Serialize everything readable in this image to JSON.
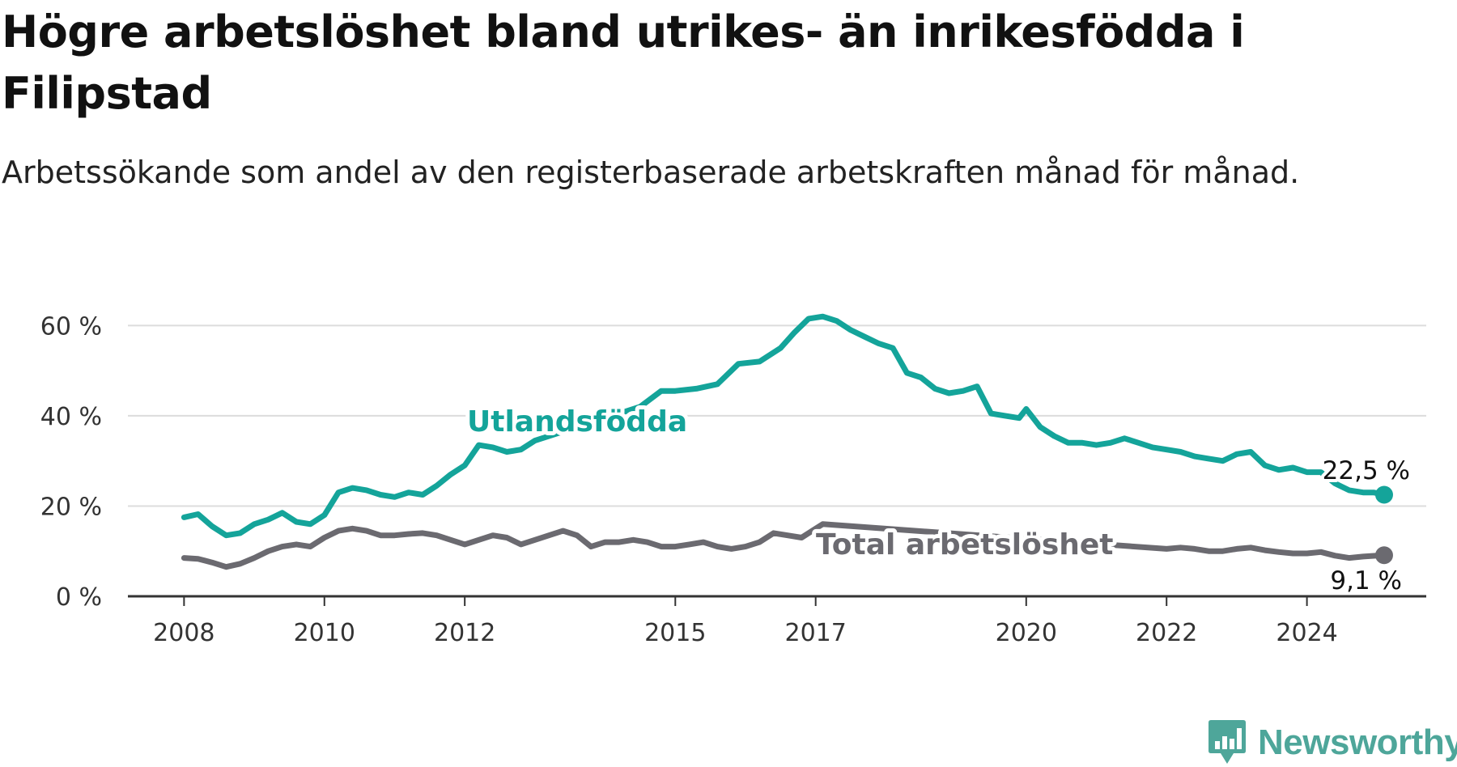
{
  "title": "Högre arbetslöshet bland utrikes- än inrikesfödda i Filipstad",
  "subtitle": "Arbetssökande som andel av den registerbaserade arbetskraften månad för månad.",
  "brand": {
    "name": "Newsworthy",
    "icon": "bar-chart-logo-icon"
  },
  "colors": {
    "foreign_born": "#14a49a",
    "total": "#6b6a70",
    "grid": "#dcdcdc",
    "axis": "#333333"
  },
  "chart_data": {
    "type": "line",
    "x_axis": {
      "ticks": [
        "2008",
        "2010",
        "2012",
        "2015",
        "2017",
        "2020",
        "2022",
        "2024"
      ],
      "range": [
        2007.2,
        2025.7
      ]
    },
    "y_axis": {
      "ticks": [
        "0 %",
        "20 %",
        "40 %",
        "60 %"
      ],
      "tick_values": [
        0,
        20,
        40,
        60
      ],
      "range": [
        0,
        64
      ]
    },
    "grid": true,
    "series": [
      {
        "name": "Utlandsfödda",
        "end_label": "22,5 %",
        "end_value": 22.5,
        "points": [
          [
            2008.0,
            17.5
          ],
          [
            2008.2,
            18.2
          ],
          [
            2008.4,
            15.5
          ],
          [
            2008.6,
            13.5
          ],
          [
            2008.8,
            14.0
          ],
          [
            2009.0,
            16.0
          ],
          [
            2009.2,
            17.0
          ],
          [
            2009.4,
            18.5
          ],
          [
            2009.6,
            16.5
          ],
          [
            2009.8,
            16.0
          ],
          [
            2010.0,
            18.0
          ],
          [
            2010.2,
            23.0
          ],
          [
            2010.4,
            24.0
          ],
          [
            2010.6,
            23.5
          ],
          [
            2010.8,
            22.5
          ],
          [
            2011.0,
            22.0
          ],
          [
            2011.2,
            23.0
          ],
          [
            2011.4,
            22.5
          ],
          [
            2011.6,
            24.5
          ],
          [
            2011.8,
            27.0
          ],
          [
            2012.0,
            29.0
          ],
          [
            2012.2,
            33.5
          ],
          [
            2012.4,
            33.0
          ],
          [
            2012.6,
            32.0
          ],
          [
            2012.8,
            32.5
          ],
          [
            2013.0,
            34.5
          ],
          [
            2014.5,
            42.0
          ],
          [
            2014.8,
            45.5
          ],
          [
            2015.0,
            45.5
          ],
          [
            2015.3,
            46.0
          ],
          [
            2015.6,
            47.0
          ],
          [
            2015.9,
            51.5
          ],
          [
            2016.2,
            52.0
          ],
          [
            2016.5,
            55.0
          ],
          [
            2016.7,
            58.5
          ],
          [
            2016.9,
            61.5
          ],
          [
            2017.1,
            62.0
          ],
          [
            2017.3,
            61.0
          ],
          [
            2017.5,
            59.0
          ],
          [
            2017.7,
            57.5
          ],
          [
            2017.9,
            56.0
          ],
          [
            2018.1,
            55.0
          ],
          [
            2018.3,
            49.5
          ],
          [
            2018.5,
            48.5
          ],
          [
            2018.7,
            46.0
          ],
          [
            2018.9,
            45.0
          ],
          [
            2019.1,
            45.5
          ],
          [
            2019.3,
            46.5
          ],
          [
            2019.5,
            40.5
          ],
          [
            2019.7,
            40.0
          ],
          [
            2019.9,
            39.5
          ],
          [
            2020.0,
            41.5
          ],
          [
            2020.2,
            37.5
          ],
          [
            2020.4,
            35.5
          ],
          [
            2020.6,
            34.0
          ],
          [
            2020.8,
            34.0
          ],
          [
            2021.0,
            33.5
          ],
          [
            2021.2,
            34.0
          ],
          [
            2021.4,
            35.0
          ],
          [
            2021.6,
            34.0
          ],
          [
            2021.8,
            33.0
          ],
          [
            2022.0,
            32.5
          ],
          [
            2022.2,
            32.0
          ],
          [
            2022.4,
            31.0
          ],
          [
            2022.6,
            30.5
          ],
          [
            2022.8,
            30.0
          ],
          [
            2023.0,
            31.5
          ],
          [
            2023.2,
            32.0
          ],
          [
            2023.4,
            29.0
          ],
          [
            2023.6,
            28.0
          ],
          [
            2023.8,
            28.5
          ],
          [
            2024.0,
            27.5
          ],
          [
            2024.2,
            27.5
          ],
          [
            2024.4,
            25.0
          ],
          [
            2024.6,
            23.5
          ],
          [
            2024.8,
            23.0
          ],
          [
            2024.95,
            23.0
          ],
          [
            2025.1,
            22.5
          ]
        ]
      },
      {
        "name": "Total arbetslöshet",
        "end_label": "9,1 %",
        "end_value": 9.1,
        "points": [
          [
            2008.0,
            8.5
          ],
          [
            2008.2,
            8.3
          ],
          [
            2008.4,
            7.5
          ],
          [
            2008.6,
            6.5
          ],
          [
            2008.8,
            7.2
          ],
          [
            2009.0,
            8.5
          ],
          [
            2009.2,
            10.0
          ],
          [
            2009.4,
            11.0
          ],
          [
            2009.6,
            11.5
          ],
          [
            2009.8,
            11.0
          ],
          [
            2010.0,
            13.0
          ],
          [
            2010.2,
            14.5
          ],
          [
            2010.4,
            15.0
          ],
          [
            2010.6,
            14.5
          ],
          [
            2010.8,
            13.5
          ],
          [
            2011.0,
            13.5
          ],
          [
            2011.2,
            13.8
          ],
          [
            2011.4,
            14.0
          ],
          [
            2011.6,
            13.5
          ],
          [
            2011.8,
            12.5
          ],
          [
            2012.0,
            11.5
          ],
          [
            2012.2,
            12.5
          ],
          [
            2012.4,
            13.5
          ],
          [
            2012.6,
            13.0
          ],
          [
            2012.8,
            11.5
          ],
          [
            2013.0,
            12.5
          ],
          [
            2013.2,
            13.5
          ],
          [
            2013.4,
            14.5
          ],
          [
            2013.6,
            13.5
          ],
          [
            2013.8,
            11.0
          ],
          [
            2014.0,
            12.0
          ],
          [
            2014.2,
            12.0
          ],
          [
            2014.4,
            12.5
          ],
          [
            2014.6,
            12.0
          ],
          [
            2014.8,
            11.0
          ],
          [
            2015.0,
            11.0
          ],
          [
            2015.2,
            11.5
          ],
          [
            2015.4,
            12.0
          ],
          [
            2015.6,
            11.0
          ],
          [
            2015.8,
            10.5
          ],
          [
            2016.0,
            11.0
          ],
          [
            2016.2,
            12.0
          ],
          [
            2016.4,
            14.0
          ],
          [
            2016.6,
            13.5
          ],
          [
            2016.8,
            13.0
          ],
          [
            2017.0,
            15.0
          ],
          [
            2017.1,
            16.0
          ],
          [
            2022.0,
            10.5
          ],
          [
            2022.2,
            10.8
          ],
          [
            2022.4,
            10.5
          ],
          [
            2022.6,
            10.0
          ],
          [
            2022.8,
            10.0
          ],
          [
            2023.0,
            10.5
          ],
          [
            2023.2,
            10.8
          ],
          [
            2023.4,
            10.2
          ],
          [
            2023.6,
            9.8
          ],
          [
            2023.8,
            9.5
          ],
          [
            2024.0,
            9.5
          ],
          [
            2024.2,
            9.8
          ],
          [
            2024.4,
            9.0
          ],
          [
            2024.6,
            8.5
          ],
          [
            2024.8,
            8.8
          ],
          [
            2025.0,
            9.0
          ],
          [
            2025.1,
            9.1
          ]
        ]
      }
    ]
  }
}
